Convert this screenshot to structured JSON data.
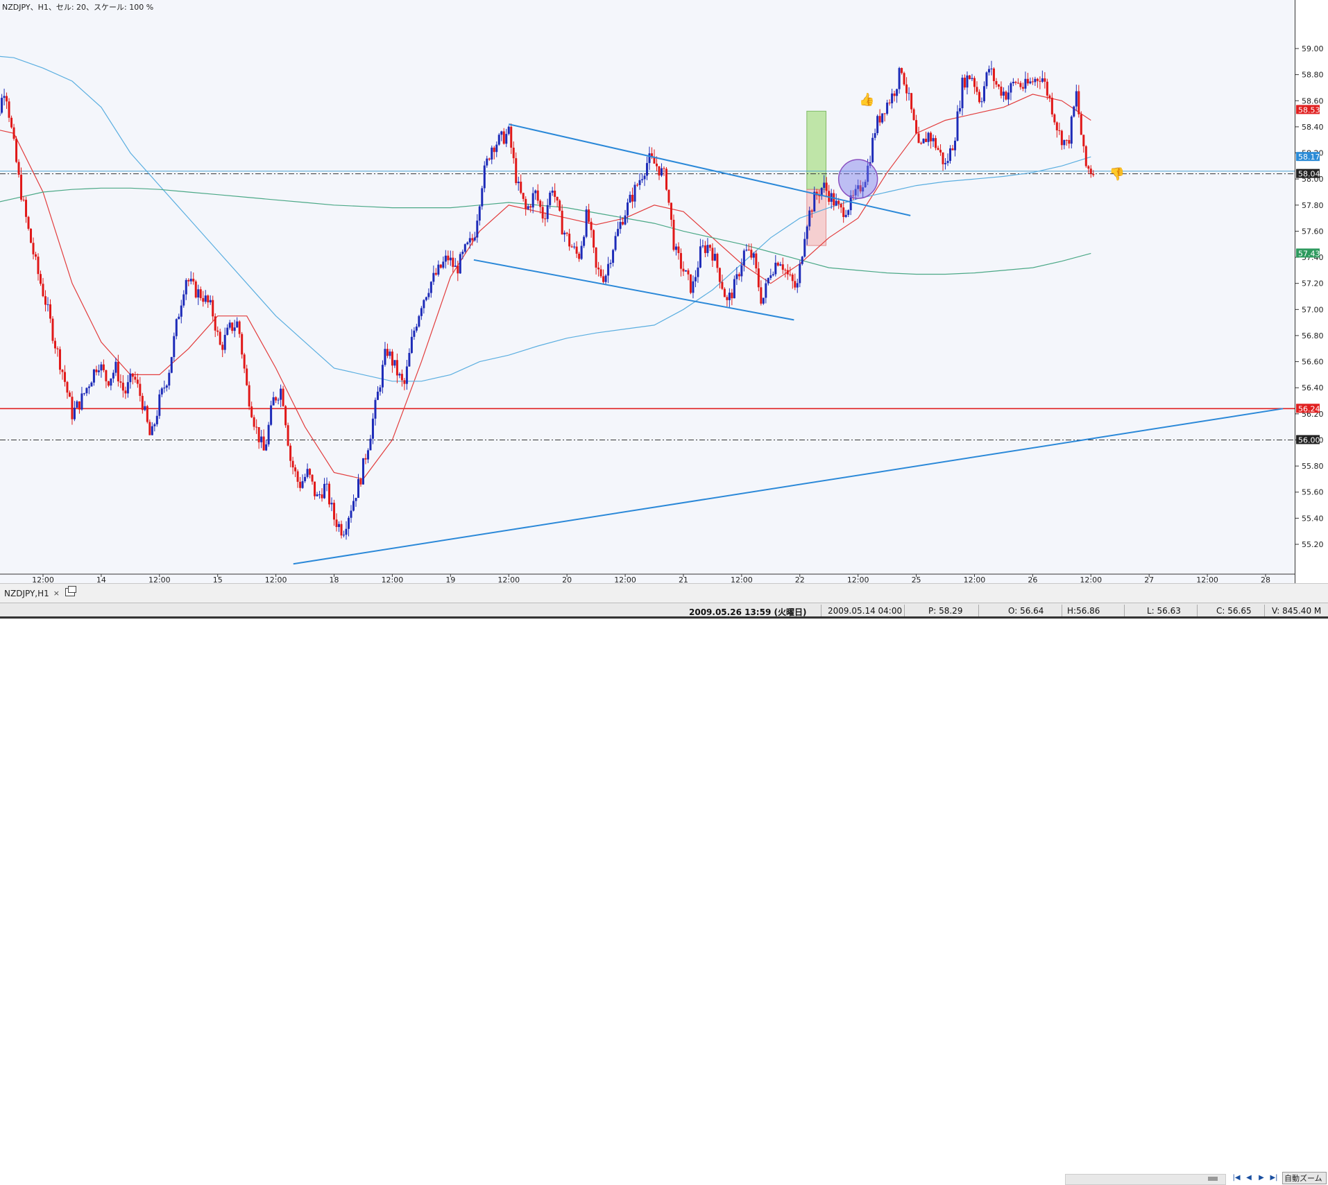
{
  "window": {
    "title": "NZDJPY、H1、セル: 20、スケール: 100 %",
    "tab_label": "NZDJPY,H1",
    "tab_close": "×",
    "auto_button": "自動ズーム"
  },
  "status": {
    "datetime": "2009.05.26 13:59 (火曜日)",
    "bar_time": "2009.05.14 04:00",
    "p": "P: 58.29",
    "o": "O: 56.64",
    "h": "H:56.86",
    "l": "L: 56.63",
    "c": "C: 56.65",
    "v": "V: 845.40 M"
  },
  "chart_data": {
    "type": "candlestick",
    "symbol": "NZDJPY",
    "timeframe": "H1",
    "ylim": [
      55.05,
      59.12
    ],
    "y_ticks": [
      "59.00",
      "58.80",
      "58.60",
      "58.40",
      "58.20",
      "58.00",
      "57.80",
      "57.60",
      "57.40",
      "57.20",
      "57.00",
      "56.80",
      "56.60",
      "56.40",
      "56.20",
      "56.00",
      "55.80",
      "55.60",
      "55.40",
      "55.20"
    ],
    "x_range": [
      0,
      26.5
    ],
    "x_labels": [
      {
        "t": 1.0,
        "label": "12:00"
      },
      {
        "t": 2.0,
        "label": "14"
      },
      {
        "t": 3.0,
        "label": "12:00"
      },
      {
        "t": 4.0,
        "label": "15"
      },
      {
        "t": 5.0,
        "label": "12:00"
      },
      {
        "t": 6.0,
        "label": "18"
      },
      {
        "t": 7.0,
        "label": "12:00"
      },
      {
        "t": 8.0,
        "label": "19"
      },
      {
        "t": 9.0,
        "label": "12:00"
      },
      {
        "t": 10.0,
        "label": "20"
      },
      {
        "t": 11.0,
        "label": "12:00"
      },
      {
        "t": 12.0,
        "label": "21"
      },
      {
        "t": 13.0,
        "label": "12:00"
      },
      {
        "t": 14.0,
        "label": "22"
      },
      {
        "t": 15.0,
        "label": "12:00"
      },
      {
        "t": 16.0,
        "label": "25"
      },
      {
        "t": 17.0,
        "label": "12:00"
      },
      {
        "t": 18.0,
        "label": "26"
      },
      {
        "t": 19.0,
        "label": "12:00"
      },
      {
        "t": 20.0,
        "label": "27"
      },
      {
        "t": 21.0,
        "label": "12:00"
      },
      {
        "t": 22.0,
        "label": "28"
      }
    ],
    "anchors": [
      [
        0.0,
        58.2
      ],
      [
        0.2,
        58.45
      ],
      [
        0.35,
        58.72
      ],
      [
        0.45,
        58.4
      ],
      [
        0.6,
        57.95
      ],
      [
        0.75,
        57.6
      ],
      [
        0.9,
        57.3
      ],
      [
        1.05,
        57.05
      ],
      [
        1.2,
        56.75
      ],
      [
        1.35,
        56.5
      ],
      [
        1.5,
        56.2
      ],
      [
        1.65,
        56.3
      ],
      [
        1.8,
        56.45
      ],
      [
        1.95,
        56.6
      ],
      [
        2.1,
        56.45
      ],
      [
        2.25,
        56.55
      ],
      [
        2.4,
        56.35
      ],
      [
        2.55,
        56.5
      ],
      [
        2.7,
        56.3
      ],
      [
        2.85,
        56.0
      ],
      [
        3.0,
        56.3
      ],
      [
        3.15,
        56.5
      ],
      [
        3.3,
        56.9
      ],
      [
        3.45,
        57.25
      ],
      [
        3.6,
        57.15
      ],
      [
        3.75,
        57.1
      ],
      [
        3.9,
        57.0
      ],
      [
        4.05,
        56.7
      ],
      [
        4.2,
        56.85
      ],
      [
        4.35,
        56.9
      ],
      [
        4.5,
        56.4
      ],
      [
        4.65,
        56.1
      ],
      [
        4.8,
        55.9
      ],
      [
        4.95,
        56.3
      ],
      [
        5.1,
        56.4
      ],
      [
        5.25,
        55.85
      ],
      [
        5.4,
        55.65
      ],
      [
        5.55,
        55.75
      ],
      [
        5.7,
        55.55
      ],
      [
        5.85,
        55.65
      ],
      [
        6.0,
        55.4
      ],
      [
        6.15,
        55.3
      ],
      [
        6.3,
        55.5
      ],
      [
        6.45,
        55.7
      ],
      [
        6.6,
        56.0
      ],
      [
        6.75,
        56.35
      ],
      [
        6.9,
        56.7
      ],
      [
        7.05,
        56.55
      ],
      [
        7.2,
        56.4
      ],
      [
        7.35,
        56.8
      ],
      [
        7.5,
        57.05
      ],
      [
        7.65,
        57.2
      ],
      [
        7.8,
        57.3
      ],
      [
        7.95,
        57.4
      ],
      [
        8.1,
        57.3
      ],
      [
        8.25,
        57.45
      ],
      [
        8.4,
        57.55
      ],
      [
        8.55,
        58.0
      ],
      [
        8.7,
        58.25
      ],
      [
        8.85,
        58.3
      ],
      [
        9.0,
        58.35
      ],
      [
        9.15,
        57.95
      ],
      [
        9.3,
        57.75
      ],
      [
        9.45,
        57.9
      ],
      [
        9.6,
        57.7
      ],
      [
        9.75,
        57.95
      ],
      [
        9.9,
        57.65
      ],
      [
        10.05,
        57.5
      ],
      [
        10.2,
        57.4
      ],
      [
        10.35,
        57.75
      ],
      [
        10.5,
        57.3
      ],
      [
        10.65,
        57.25
      ],
      [
        10.8,
        57.5
      ],
      [
        10.95,
        57.7
      ],
      [
        11.1,
        57.85
      ],
      [
        11.25,
        58.0
      ],
      [
        11.4,
        58.15
      ],
      [
        11.55,
        58.1
      ],
      [
        11.7,
        58.0
      ],
      [
        11.85,
        57.45
      ],
      [
        12.0,
        57.3
      ],
      [
        12.15,
        57.15
      ],
      [
        12.3,
        57.45
      ],
      [
        12.45,
        57.5
      ],
      [
        12.6,
        57.3
      ],
      [
        12.75,
        57.05
      ],
      [
        12.9,
        57.2
      ],
      [
        13.05,
        57.45
      ],
      [
        13.2,
        57.4
      ],
      [
        13.35,
        57.05
      ],
      [
        13.5,
        57.3
      ],
      [
        13.65,
        57.4
      ],
      [
        13.8,
        57.25
      ],
      [
        13.95,
        57.15
      ],
      [
        14.1,
        57.65
      ],
      [
        14.25,
        57.85
      ],
      [
        14.4,
        57.95
      ],
      [
        14.55,
        57.85
      ],
      [
        14.7,
        57.75
      ],
      [
        14.85,
        57.8
      ],
      [
        15.0,
        57.9
      ],
      [
        15.15,
        58.05
      ],
      [
        15.3,
        58.4
      ],
      [
        15.45,
        58.55
      ],
      [
        15.6,
        58.65
      ],
      [
        15.75,
        58.85
      ],
      [
        15.9,
        58.55
      ],
      [
        16.05,
        58.2
      ],
      [
        16.2,
        58.35
      ],
      [
        16.35,
        58.25
      ],
      [
        16.5,
        58.1
      ],
      [
        16.65,
        58.3
      ],
      [
        16.8,
        58.75
      ],
      [
        16.95,
        58.8
      ],
      [
        17.1,
        58.6
      ],
      [
        17.25,
        58.85
      ],
      [
        17.4,
        58.7
      ],
      [
        17.55,
        58.65
      ],
      [
        17.7,
        58.75
      ],
      [
        17.85,
        58.7
      ],
      [
        18.0,
        58.75
      ],
      [
        18.15,
        58.8
      ],
      [
        18.3,
        58.6
      ],
      [
        18.45,
        58.35
      ],
      [
        18.6,
        58.25
      ],
      [
        18.75,
        58.65
      ],
      [
        18.9,
        58.1
      ],
      [
        19.05,
        58.05
      ]
    ],
    "ma": [
      {
        "name": "",
        "color": "#e23c3c",
        "points": [
          [
            0,
            58.4
          ],
          [
            0.5,
            58.35
          ],
          [
            1,
            57.9
          ],
          [
            1.5,
            57.2
          ],
          [
            2,
            56.75
          ],
          [
            2.5,
            56.5
          ],
          [
            3,
            56.5
          ],
          [
            3.5,
            56.7
          ],
          [
            4,
            56.95
          ],
          [
            4.5,
            56.95
          ],
          [
            5,
            56.55
          ],
          [
            5.5,
            56.1
          ],
          [
            6,
            55.75
          ],
          [
            6.5,
            55.7
          ],
          [
            7,
            56.0
          ],
          [
            7.5,
            56.6
          ],
          [
            8,
            57.25
          ],
          [
            8.5,
            57.6
          ],
          [
            9,
            57.8
          ],
          [
            9.5,
            57.75
          ],
          [
            10,
            57.7
          ],
          [
            10.5,
            57.65
          ],
          [
            11,
            57.7
          ],
          [
            11.5,
            57.8
          ],
          [
            12,
            57.75
          ],
          [
            12.5,
            57.55
          ],
          [
            13,
            57.35
          ],
          [
            13.5,
            57.2
          ],
          [
            14,
            57.35
          ],
          [
            14.5,
            57.55
          ],
          [
            15,
            57.7
          ],
          [
            15.5,
            58.05
          ],
          [
            16,
            58.35
          ],
          [
            16.5,
            58.45
          ],
          [
            17,
            58.5
          ],
          [
            17.5,
            58.55
          ],
          [
            18,
            58.65
          ],
          [
            18.5,
            58.6
          ],
          [
            19,
            58.45
          ]
        ]
      },
      {
        "name": "",
        "color": "#5aaee0",
        "points": [
          [
            0,
            58.95
          ],
          [
            0.5,
            58.93
          ],
          [
            1,
            58.85
          ],
          [
            1.5,
            58.75
          ],
          [
            2,
            58.55
          ],
          [
            2.5,
            58.2
          ],
          [
            3,
            57.95
          ],
          [
            3.5,
            57.7
          ],
          [
            4,
            57.45
          ],
          [
            4.5,
            57.2
          ],
          [
            5,
            56.95
          ],
          [
            5.5,
            56.75
          ],
          [
            6,
            56.55
          ],
          [
            6.5,
            56.5
          ],
          [
            7,
            56.45
          ],
          [
            7.5,
            56.45
          ],
          [
            8,
            56.5
          ],
          [
            8.5,
            56.6
          ],
          [
            9,
            56.65
          ],
          [
            9.5,
            56.72
          ],
          [
            10,
            56.78
          ],
          [
            10.5,
            56.82
          ],
          [
            11,
            56.85
          ],
          [
            11.5,
            56.88
          ],
          [
            12,
            57.0
          ],
          [
            12.5,
            57.15
          ],
          [
            13,
            57.35
          ],
          [
            13.5,
            57.55
          ],
          [
            14,
            57.7
          ],
          [
            14.5,
            57.78
          ],
          [
            15,
            57.85
          ],
          [
            15.5,
            57.9
          ],
          [
            16,
            57.95
          ],
          [
            16.5,
            57.98
          ],
          [
            17,
            58.0
          ],
          [
            17.5,
            58.02
          ],
          [
            18,
            58.05
          ],
          [
            18.5,
            58.1
          ],
          [
            19,
            58.17
          ]
        ]
      },
      {
        "name": "",
        "color": "#4aa886",
        "points": [
          [
            0,
            57.8
          ],
          [
            0.5,
            57.85
          ],
          [
            1,
            57.9
          ],
          [
            1.5,
            57.92
          ],
          [
            2,
            57.93
          ],
          [
            2.5,
            57.93
          ],
          [
            3,
            57.92
          ],
          [
            3.5,
            57.9
          ],
          [
            4,
            57.88
          ],
          [
            4.5,
            57.86
          ],
          [
            5,
            57.84
          ],
          [
            5.5,
            57.82
          ],
          [
            6,
            57.8
          ],
          [
            6.5,
            57.79
          ],
          [
            7,
            57.78
          ],
          [
            7.5,
            57.78
          ],
          [
            8,
            57.78
          ],
          [
            8.5,
            57.8
          ],
          [
            9,
            57.82
          ],
          [
            9.5,
            57.8
          ],
          [
            10,
            57.78
          ],
          [
            10.5,
            57.74
          ],
          [
            11,
            57.7
          ],
          [
            11.5,
            57.66
          ],
          [
            12,
            57.6
          ],
          [
            12.5,
            57.55
          ],
          [
            13,
            57.5
          ],
          [
            13.5,
            57.44
          ],
          [
            14,
            57.38
          ],
          [
            14.5,
            57.32
          ],
          [
            15,
            57.3
          ],
          [
            15.5,
            57.28
          ],
          [
            16,
            57.27
          ],
          [
            16.5,
            57.27
          ],
          [
            17,
            57.28
          ],
          [
            17.5,
            57.3
          ],
          [
            18,
            57.32
          ],
          [
            18.5,
            57.37
          ],
          [
            19,
            57.43
          ]
        ]
      }
    ],
    "hlines": [
      {
        "price": 58.04,
        "style": "dashdot",
        "color": "#333333"
      },
      {
        "price": 56.0,
        "style": "dashdot",
        "color": "#333333"
      },
      {
        "price": 56.24,
        "style": "solid",
        "color": "#e02020"
      },
      {
        "price": 58.06,
        "style": "solid",
        "color": "#4aa0d0"
      }
    ],
    "trendlines": [
      {
        "from": [
          9.0,
          58.42
        ],
        "to": [
          15.9,
          57.72
        ],
        "color": "#2a88d8"
      },
      {
        "from": [
          8.4,
          57.38
        ],
        "to": [
          13.9,
          56.92
        ],
        "color": "#2a88d8"
      },
      {
        "from": [
          5.3,
          55.05
        ],
        "to": [
          22.3,
          56.24
        ],
        "color": "#2a88d8"
      }
    ],
    "boxes": [
      {
        "t0": 14.12,
        "t1": 14.45,
        "p0": 57.92,
        "p1": 58.52,
        "fill": "#b6e39a",
        "stroke": "#6ab04c"
      },
      {
        "t0": 14.12,
        "t1": 14.45,
        "p0": 57.49,
        "p1": 57.92,
        "fill": "#f6c9c9",
        "stroke": "#e08080"
      }
    ],
    "circle": {
      "t": 15.0,
      "p": 58.0,
      "r": 28
    },
    "markers": [
      {
        "name": "thumbs-up",
        "t": 15.15,
        "p": 58.62,
        "glyph": "👍"
      },
      {
        "name": "thumbs-down",
        "t": 19.45,
        "p": 58.05,
        "glyph": "👎"
      }
    ],
    "price_labels": [
      {
        "price": 58.53,
        "text": "58.53",
        "bg": "#e02020",
        "color": "#ffffff"
      },
      {
        "price": 58.17,
        "text": "58.17",
        "bg": "#2b8bd6",
        "color": "#ffffff"
      },
      {
        "price": 58.04,
        "text": "58.04",
        "bg": "#222222",
        "color": "#ffffff"
      },
      {
        "price": 57.43,
        "text": "57.43",
        "bg": "#2e9a5e",
        "color": "#ffffff"
      },
      {
        "price": 56.24,
        "text": "56.24",
        "bg": "#e02020",
        "color": "#ffffff"
      },
      {
        "price": 56.0,
        "text": "56.00",
        "bg": "#222222",
        "color": "#ffffff"
      }
    ],
    "colors": {
      "bull": "#1d2bb8",
      "bear": "#e01818",
      "background": "#f4f6fb",
      "axis": "#333333"
    }
  }
}
